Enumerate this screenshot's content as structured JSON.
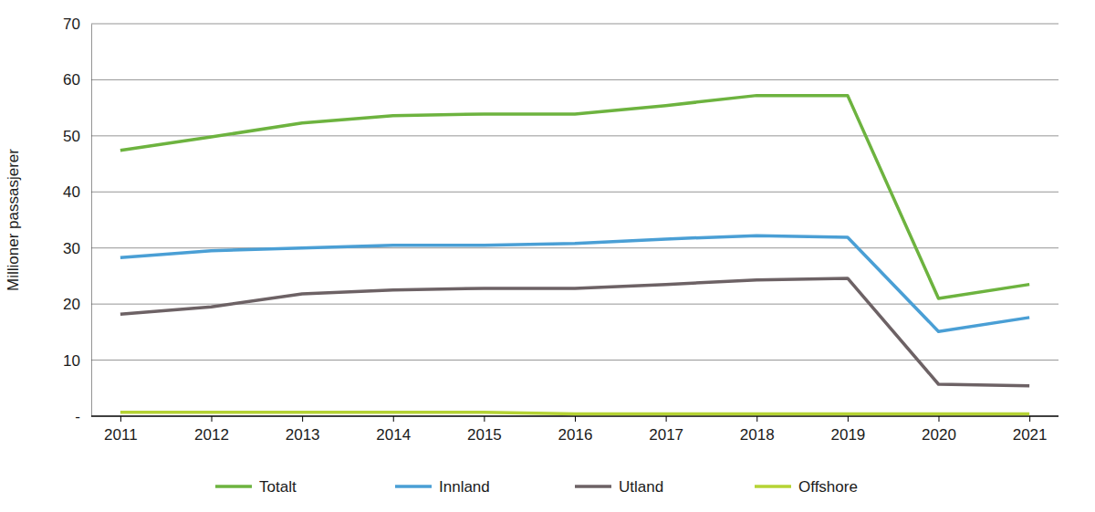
{
  "chart_data": {
    "type": "line",
    "y_label": "Millioner passasjerer",
    "categories": [
      "2011",
      "2012",
      "2013",
      "2014",
      "2015",
      "2016",
      "2017",
      "2018",
      "2019",
      "2020",
      "2021"
    ],
    "series": [
      {
        "name": "Totalt",
        "color": "#6db33f",
        "values": [
          47.4,
          49.8,
          52.3,
          53.6,
          53.9,
          53.9,
          55.4,
          57.2,
          57.2,
          21.0,
          23.5
        ]
      },
      {
        "name": "Innland",
        "color": "#4a9fd5",
        "values": [
          28.3,
          29.5,
          30.0,
          30.5,
          30.5,
          30.8,
          31.6,
          32.2,
          31.9,
          15.1,
          17.6
        ]
      },
      {
        "name": "Utland",
        "color": "#6d6265",
        "values": [
          18.2,
          19.5,
          21.8,
          22.5,
          22.8,
          22.8,
          23.5,
          24.3,
          24.6,
          5.7,
          5.4
        ]
      },
      {
        "name": "Offshore",
        "color": "#b5d334",
        "values": [
          0.7,
          0.7,
          0.7,
          0.7,
          0.7,
          0.4,
          0.4,
          0.4,
          0.4,
          0.4,
          0.4
        ]
      }
    ],
    "ylim": [
      0,
      70
    ],
    "yticks": [
      {
        "value": 0,
        "label": "-"
      },
      10,
      20,
      30,
      40,
      50,
      60,
      70
    ],
    "grid": true,
    "legend": "bottom"
  }
}
